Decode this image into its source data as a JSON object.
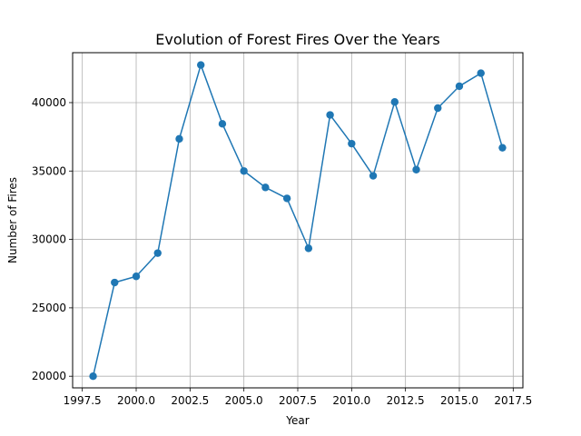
{
  "chart_data": {
    "type": "line",
    "title": "Evolution of Forest Fires Over the Years",
    "xlabel": "Year",
    "ylabel": "Number of Fires",
    "xlim": [
      1997.05,
      2017.95
    ],
    "ylim": [
      19150,
      43650
    ],
    "xticks": [
      1997.5,
      2000.0,
      2002.5,
      2005.0,
      2007.5,
      2010.0,
      2012.5,
      2015.0,
      2017.5
    ],
    "xtick_labels": [
      "1997.5",
      "2000.0",
      "2002.5",
      "2005.0",
      "2007.5",
      "2010.0",
      "2012.5",
      "2015.0",
      "2017.5"
    ],
    "yticks": [
      20000,
      25000,
      30000,
      35000,
      40000
    ],
    "ytick_labels": [
      "20000",
      "25000",
      "30000",
      "35000",
      "40000"
    ],
    "grid": true,
    "color": "#1f77b4",
    "marker": "circle",
    "series": [
      {
        "x": [
          1998,
          1999,
          2000,
          2001,
          2002,
          2003,
          2004,
          2005,
          2006,
          2007,
          2008,
          2009,
          2010,
          2011,
          2012,
          2013,
          2014,
          2015,
          2016,
          2017
        ],
        "y": [
          20000,
          26850,
          27300,
          29000,
          37350,
          42750,
          38450,
          35000,
          33800,
          33000,
          29350,
          39100,
          37000,
          34650,
          40050,
          35100,
          39600,
          41200,
          42150,
          36700
        ]
      }
    ]
  }
}
